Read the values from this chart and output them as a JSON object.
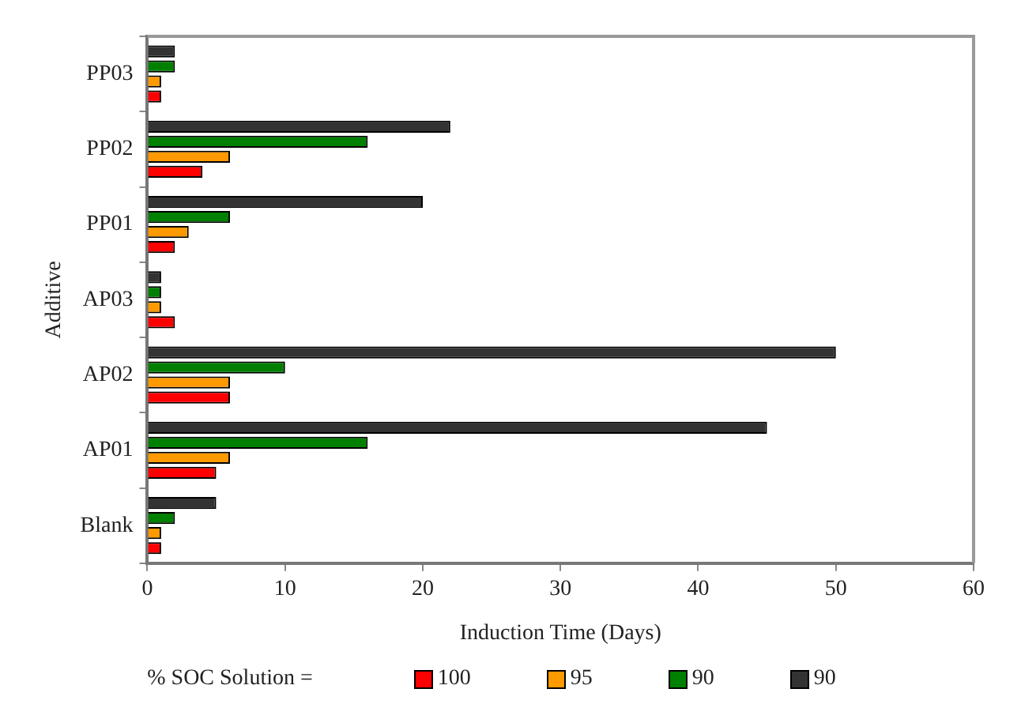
{
  "chart_data": {
    "type": "bar",
    "orientation": "horizontal",
    "xlabel": "Induction Time (Days)",
    "ylabel": "Additive",
    "legend_title": "% SOC Solution =",
    "categories": [
      "PP03",
      "PP02",
      "PP01",
      "AP03",
      "AP02",
      "AP01",
      "Blank"
    ],
    "series": [
      {
        "name": "100",
        "color": "#ff0000",
        "values": [
          1,
          4,
          2,
          2,
          6,
          5,
          1
        ]
      },
      {
        "name": "95",
        "color": "#ff9900",
        "values": [
          1,
          6,
          3,
          1,
          6,
          6,
          1
        ]
      },
      {
        "name": "90",
        "color": "#008000",
        "values": [
          2,
          16,
          6,
          1,
          10,
          16,
          2
        ]
      },
      {
        "name": "90",
        "color": "#333333",
        "values": [
          2,
          22,
          20,
          1,
          50,
          45,
          5
        ]
      }
    ],
    "xlim": [
      0,
      60
    ],
    "xticks": [
      0,
      10,
      20,
      30,
      40,
      50,
      60
    ],
    "grid": false,
    "legend": "bottom"
  }
}
